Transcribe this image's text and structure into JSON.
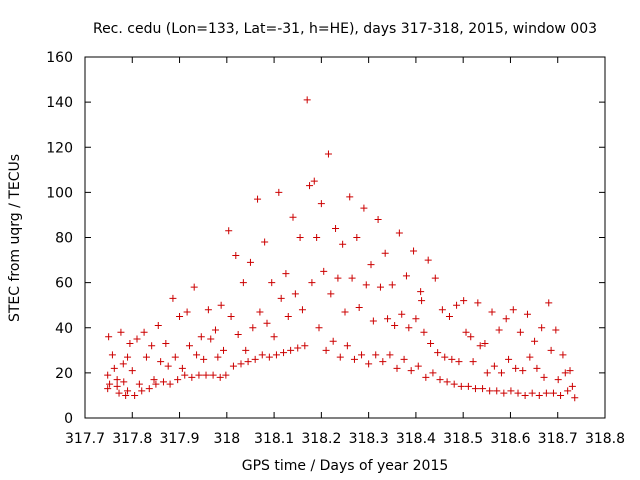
{
  "chart_data": {
    "type": "scatter",
    "title": "Rec. cedu (Lon=133, Lat=-31, h=HE), days 317-318, 2015, window 003",
    "xlabel": "GPS time / Days of year 2015",
    "ylabel": "STEC from uqrg / TECUs",
    "xlim": [
      317.7,
      318.8
    ],
    "ylim": [
      0,
      160
    ],
    "x_ticks": [
      317.7,
      317.8,
      317.9,
      318.0,
      318.1,
      318.2,
      318.3,
      318.4,
      318.5,
      318.6,
      318.7,
      318.8
    ],
    "x_tick_labels": [
      "317.7",
      "317.8",
      "317.9",
      "318",
      "318.1",
      "318.2",
      "318.3",
      "318.4",
      "318.5",
      "318.6",
      "318.7",
      "318.8"
    ],
    "y_ticks": [
      0,
      20,
      40,
      60,
      80,
      100,
      120,
      140,
      160
    ],
    "y_tick_labels": [
      "0",
      "20",
      "40",
      "60",
      "80",
      "100",
      "120",
      "140",
      "160"
    ],
    "grid": false,
    "legend": "none",
    "marker": "+",
    "color": "#cc0000",
    "series": [
      {
        "x": [
          317.748,
          317.752,
          317.748,
          317.75,
          317.758,
          317.762,
          317.768,
          317.768,
          317.772,
          317.776,
          317.781,
          317.782,
          317.786,
          317.79,
          317.79,
          317.795,
          317.8,
          317.805,
          317.81,
          317.815,
          317.82,
          317.825,
          317.83,
          317.836,
          317.841,
          317.846,
          317.85,
          317.855,
          317.86,
          317.866,
          317.871,
          317.876,
          317.88,
          317.886,
          317.891,
          317.896,
          317.9,
          317.906,
          317.911,
          317.916,
          317.921,
          317.926,
          317.931,
          317.936,
          317.941,
          317.946,
          317.951,
          317.956,
          317.961,
          317.966,
          317.971,
          317.976,
          317.981,
          317.986
        ],
        "y": [
          19,
          15,
          13,
          36,
          28,
          22,
          17,
          14,
          11,
          38,
          24,
          16,
          10,
          27,
          12,
          33,
          21,
          10,
          35,
          15,
          12,
          38,
          27,
          13,
          32,
          17,
          15,
          41,
          25,
          16,
          33,
          23,
          15,
          53,
          27,
          17,
          45,
          22,
          19,
          47,
          32,
          18,
          58,
          28,
          19,
          36,
          26,
          19,
          48,
          35,
          19,
          39,
          27,
          18
        ]
      },
      {
        "x": [
          317.988,
          317.993,
          317.998,
          318.004,
          318.009,
          318.014,
          318.019,
          318.024,
          318.03,
          318.035,
          318.04,
          318.045,
          318.05,
          318.055,
          318.06,
          318.065,
          318.07,
          318.075,
          318.08,
          318.085,
          318.09,
          318.095,
          318.1,
          318.105,
          318.11,
          318.115,
          318.12,
          318.125,
          318.13,
          318.135,
          318.14,
          318.145,
          318.15,
          318.155,
          318.16,
          318.165,
          318.17,
          318.175,
          318.18,
          318.185,
          318.19,
          318.195,
          318.2,
          318.205,
          318.21,
          318.215,
          318.22,
          318.225,
          318.23,
          318.235,
          318.24,
          318.245,
          318.25,
          318.255,
          318.26,
          318.265,
          318.27,
          318.275,
          318.28,
          318.285,
          318.29,
          318.295,
          318.3,
          318.305,
          318.31,
          318.315,
          318.32,
          318.325,
          318.33,
          318.335,
          318.34,
          318.345,
          318.35,
          318.355,
          318.36,
          318.365,
          318.37,
          318.375,
          318.38,
          318.385,
          318.39,
          318.395,
          318.4,
          318.405,
          318.41
        ],
        "y": [
          50,
          30,
          19,
          83,
          45,
          23,
          72,
          37,
          24,
          60,
          30,
          25,
          69,
          40,
          26,
          97,
          47,
          28,
          78,
          42,
          27,
          60,
          36,
          28,
          100,
          53,
          29,
          64,
          45,
          30,
          89,
          55,
          31,
          80,
          48,
          32,
          141,
          103,
          60,
          105,
          80,
          40,
          95,
          65,
          30,
          117,
          55,
          34,
          84,
          62,
          27,
          77,
          47,
          32,
          98,
          62,
          26,
          80,
          49,
          28,
          93,
          59,
          24,
          68,
          43,
          28,
          88,
          58,
          25,
          73,
          44,
          28,
          59,
          41,
          22,
          82,
          46,
          26,
          63,
          40,
          21,
          74,
          44,
          23,
          56
        ]
      },
      {
        "x": [
          318.412,
          318.417,
          318.421,
          318.426,
          318.431,
          318.436,
          318.441,
          318.446,
          318.451,
          318.456,
          318.461,
          318.466,
          318.471,
          318.476,
          318.481,
          318.486,
          318.491,
          318.496,
          318.501,
          318.506,
          318.511,
          318.516,
          318.521,
          318.526,
          318.531,
          318.536,
          318.541,
          318.546,
          318.551,
          318.556,
          318.561,
          318.566,
          318.571,
          318.576,
          318.581,
          318.586,
          318.591,
          318.596,
          318.601,
          318.606,
          318.611,
          318.616,
          318.621,
          318.626,
          318.631,
          318.636,
          318.641,
          318.646,
          318.651,
          318.656,
          318.661,
          318.666,
          318.671,
          318.676,
          318.681,
          318.686,
          318.691,
          318.696,
          318.701,
          318.706,
          318.711,
          318.716,
          318.721,
          318.726,
          318.731,
          318.736
        ],
        "y": [
          52,
          38,
          18,
          70,
          33,
          20,
          62,
          29,
          17,
          48,
          27,
          16,
          45,
          26,
          15,
          50,
          25,
          14,
          52,
          38,
          14,
          36,
          25,
          13,
          51,
          32,
          13,
          33,
          20,
          12,
          47,
          23,
          12,
          39,
          20,
          11,
          44,
          26,
          12,
          48,
          22,
          11,
          38,
          21,
          10,
          46,
          27,
          11,
          34,
          22,
          10,
          40,
          18,
          11,
          51,
          30,
          11,
          39,
          17,
          10,
          28,
          20,
          12,
          21,
          14,
          9
        ]
      }
    ]
  }
}
